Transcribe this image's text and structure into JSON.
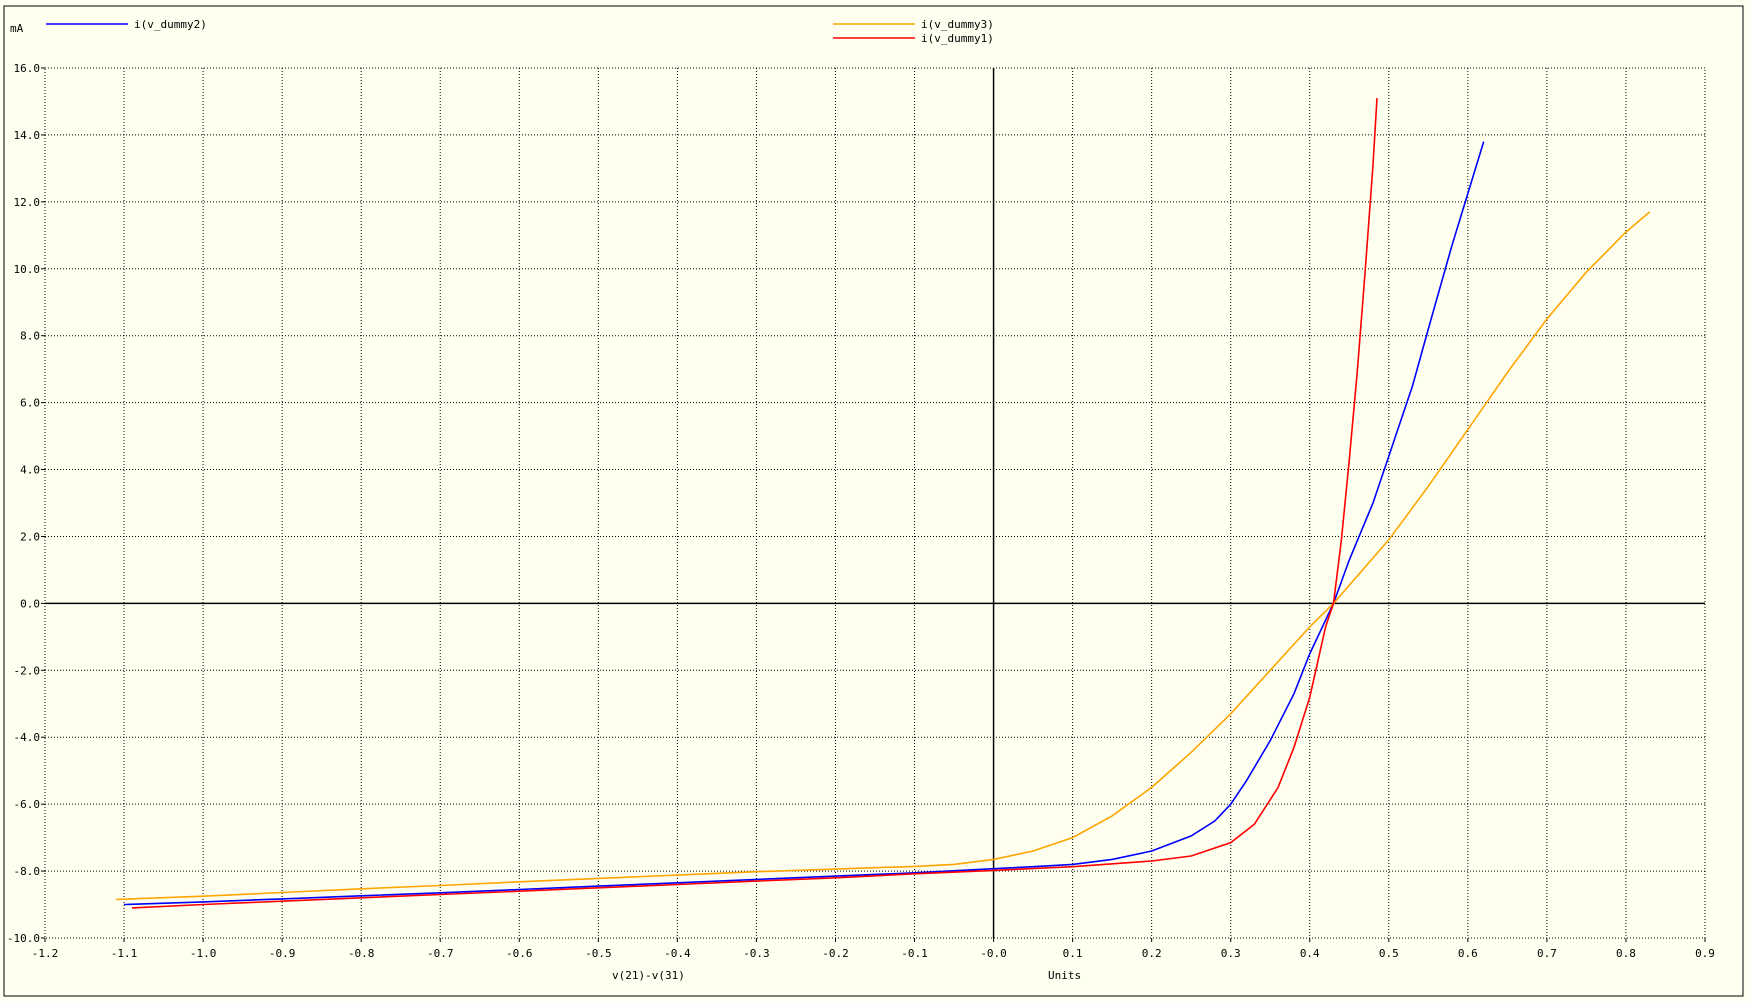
{
  "chart_data": {
    "type": "line",
    "ylabel_unit": "mA",
    "xlabel": "v(21)-v(31)",
    "xunits": "Units",
    "xlim": [
      -1.2,
      0.9
    ],
    "ylim": [
      -10.0,
      16.0
    ],
    "xticks": [
      "-1.2",
      "-1.1",
      "-1.0",
      "-0.9",
      "-0.8",
      "-0.7",
      "-0.6",
      "-0.5",
      "-0.4",
      "-0.3",
      "-0.2",
      "-0.1",
      "-0.0",
      "0.1",
      "0.2",
      "0.3",
      "0.4",
      "0.5",
      "0.6",
      "0.7",
      "0.8",
      "0.9"
    ],
    "yticks": [
      "16.0",
      "14.0",
      "12.0",
      "10.0",
      "8.0",
      "6.0",
      "4.0",
      "2.0",
      "0.0",
      "-2.0",
      "-4.0",
      "-6.0",
      "-8.0",
      "-10.0"
    ],
    "grid": true,
    "series": [
      {
        "name": "i(v_dummy2)",
        "color": "#0000ff",
        "x": [
          -1.1,
          -1.0,
          -0.9,
          -0.8,
          -0.7,
          -0.6,
          -0.5,
          -0.4,
          -0.3,
          -0.2,
          -0.1,
          0.0,
          0.05,
          0.1,
          0.15,
          0.2,
          0.25,
          0.28,
          0.3,
          0.32,
          0.35,
          0.38,
          0.4,
          0.43,
          0.45,
          0.48,
          0.5,
          0.53,
          0.55,
          0.58,
          0.62
        ],
        "y": [
          -9.0,
          -8.92,
          -8.83,
          -8.74,
          -8.65,
          -8.55,
          -8.45,
          -8.35,
          -8.25,
          -8.15,
          -8.05,
          -7.93,
          -7.87,
          -7.8,
          -7.65,
          -7.4,
          -6.95,
          -6.5,
          -6.0,
          -5.3,
          -4.1,
          -2.7,
          -1.5,
          0.0,
          1.3,
          3.0,
          4.4,
          6.5,
          8.2,
          10.7,
          13.8
        ]
      },
      {
        "name": "i(v_dummy3)",
        "color": "#ffa500",
        "x": [
          -1.11,
          -1.0,
          -0.9,
          -0.8,
          -0.7,
          -0.6,
          -0.5,
          -0.4,
          -0.3,
          -0.2,
          -0.1,
          -0.05,
          0.0,
          0.05,
          0.1,
          0.15,
          0.2,
          0.25,
          0.3,
          0.35,
          0.4,
          0.43,
          0.5,
          0.55,
          0.6,
          0.65,
          0.7,
          0.75,
          0.8,
          0.83
        ],
        "y": [
          -8.85,
          -8.75,
          -8.64,
          -8.53,
          -8.43,
          -8.32,
          -8.22,
          -8.12,
          -8.02,
          -7.94,
          -7.86,
          -7.8,
          -7.65,
          -7.4,
          -7.0,
          -6.35,
          -5.5,
          -4.45,
          -3.3,
          -2.0,
          -0.7,
          0.0,
          1.9,
          3.5,
          5.2,
          6.9,
          8.5,
          9.9,
          11.1,
          11.7
        ]
      },
      {
        "name": "i(v_dummy1)",
        "color": "#ff0000",
        "x": [
          -1.09,
          -1.0,
          -0.9,
          -0.8,
          -0.7,
          -0.6,
          -0.5,
          -0.4,
          -0.3,
          -0.2,
          -0.1,
          0.0,
          0.1,
          0.2,
          0.25,
          0.3,
          0.33,
          0.36,
          0.38,
          0.4,
          0.42,
          0.43,
          0.44,
          0.45,
          0.46,
          0.47,
          0.48,
          0.485
        ],
        "y": [
          -9.1,
          -9.0,
          -8.9,
          -8.8,
          -8.7,
          -8.6,
          -8.5,
          -8.4,
          -8.3,
          -8.2,
          -8.08,
          -7.98,
          -7.87,
          -7.7,
          -7.55,
          -7.15,
          -6.6,
          -5.5,
          -4.3,
          -2.8,
          -0.7,
          0.0,
          1.9,
          4.3,
          6.9,
          9.9,
          13.1,
          15.1
        ]
      }
    ]
  }
}
